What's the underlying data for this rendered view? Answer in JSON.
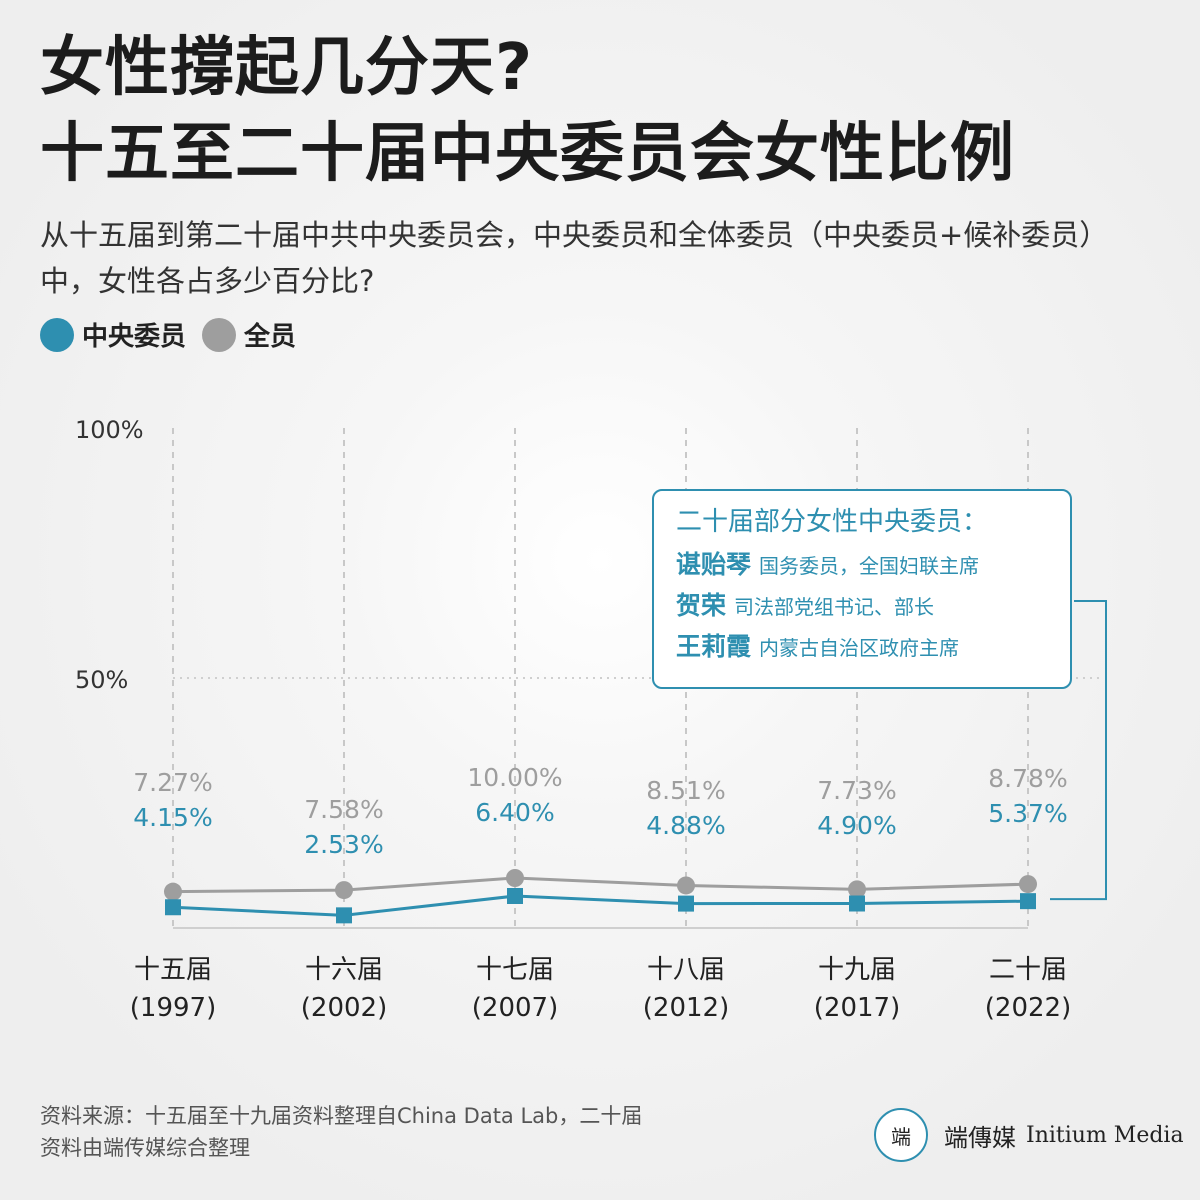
{
  "header": {
    "title_line1": "女性撐起几分天?",
    "title_line2": "十五至二十届中央委员会女性比例",
    "subtitle": "从十五届到第二十届中共中央委员会，中央委员和全体委员（中央委员+候补委员）中，女性各占多少百分比?"
  },
  "legend": {
    "items": [
      {
        "label": "中央委员",
        "color": "#2e8fb0"
      },
      {
        "label": "全员",
        "color": "#9e9e9e"
      }
    ]
  },
  "chart_data": {
    "type": "line",
    "categories": [
      "十五届",
      "十六届",
      "十七届",
      "十八届",
      "十九届",
      "二十届"
    ],
    "years": [
      "(1997)",
      "(2002)",
      "(2007)",
      "(2012)",
      "(2017)",
      "(2022)"
    ],
    "series": [
      {
        "name": "中央委员",
        "values": [
          4.15,
          2.53,
          6.4,
          4.88,
          4.9,
          5.37
        ],
        "labels": [
          "4.15%",
          "2.53%",
          "6.40%",
          "4.88%",
          "4.90%",
          "5.37%"
        ],
        "color": "#2e8fb0",
        "marker": "square"
      },
      {
        "name": "全员",
        "values": [
          7.27,
          7.58,
          10.0,
          8.51,
          7.73,
          8.78
        ],
        "labels": [
          "7.27%",
          "7.58%",
          "10.00%",
          "8.51%",
          "7.73%",
          "8.78%"
        ],
        "color": "#9e9e9e",
        "marker": "circle"
      }
    ],
    "yticks": [
      "100%",
      "50%"
    ],
    "ylim": [
      0,
      100
    ],
    "grid": true
  },
  "callout": {
    "heading": "二十届部分女性中央委员：",
    "people": [
      {
        "name": "谌贻琴",
        "role": "国务委员，全国妇联主席"
      },
      {
        "name": "贺荣",
        "role": "司法部党组书记、部长"
      },
      {
        "name": "王莉霞",
        "role": "内蒙古自治区政府主席"
      }
    ]
  },
  "footer": {
    "source_line1": "资料来源：十五届至十九届资料整理自China Data Lab，二十届",
    "source_line2": "资料由端传媒综合整理",
    "brand_logo": "端",
    "brand_cn": "端傳媒",
    "brand_en": "Initium Media"
  }
}
